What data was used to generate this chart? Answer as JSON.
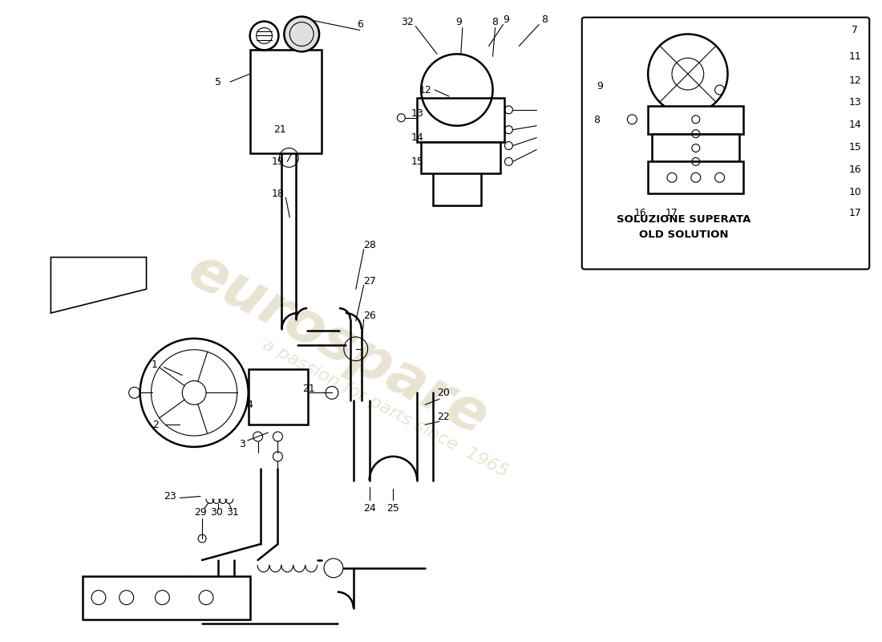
{
  "bg_color": "#ffffff",
  "line_color": "#000000",
  "lw_main": 1.8,
  "lw_med": 1.2,
  "lw_thin": 0.8,
  "watermark1": "eurospare",
  "watermark2": "a passion for parts since  1965",
  "inset_label1": "SOLUZIONE SUPERATA",
  "inset_label2": "OLD SOLUTION"
}
